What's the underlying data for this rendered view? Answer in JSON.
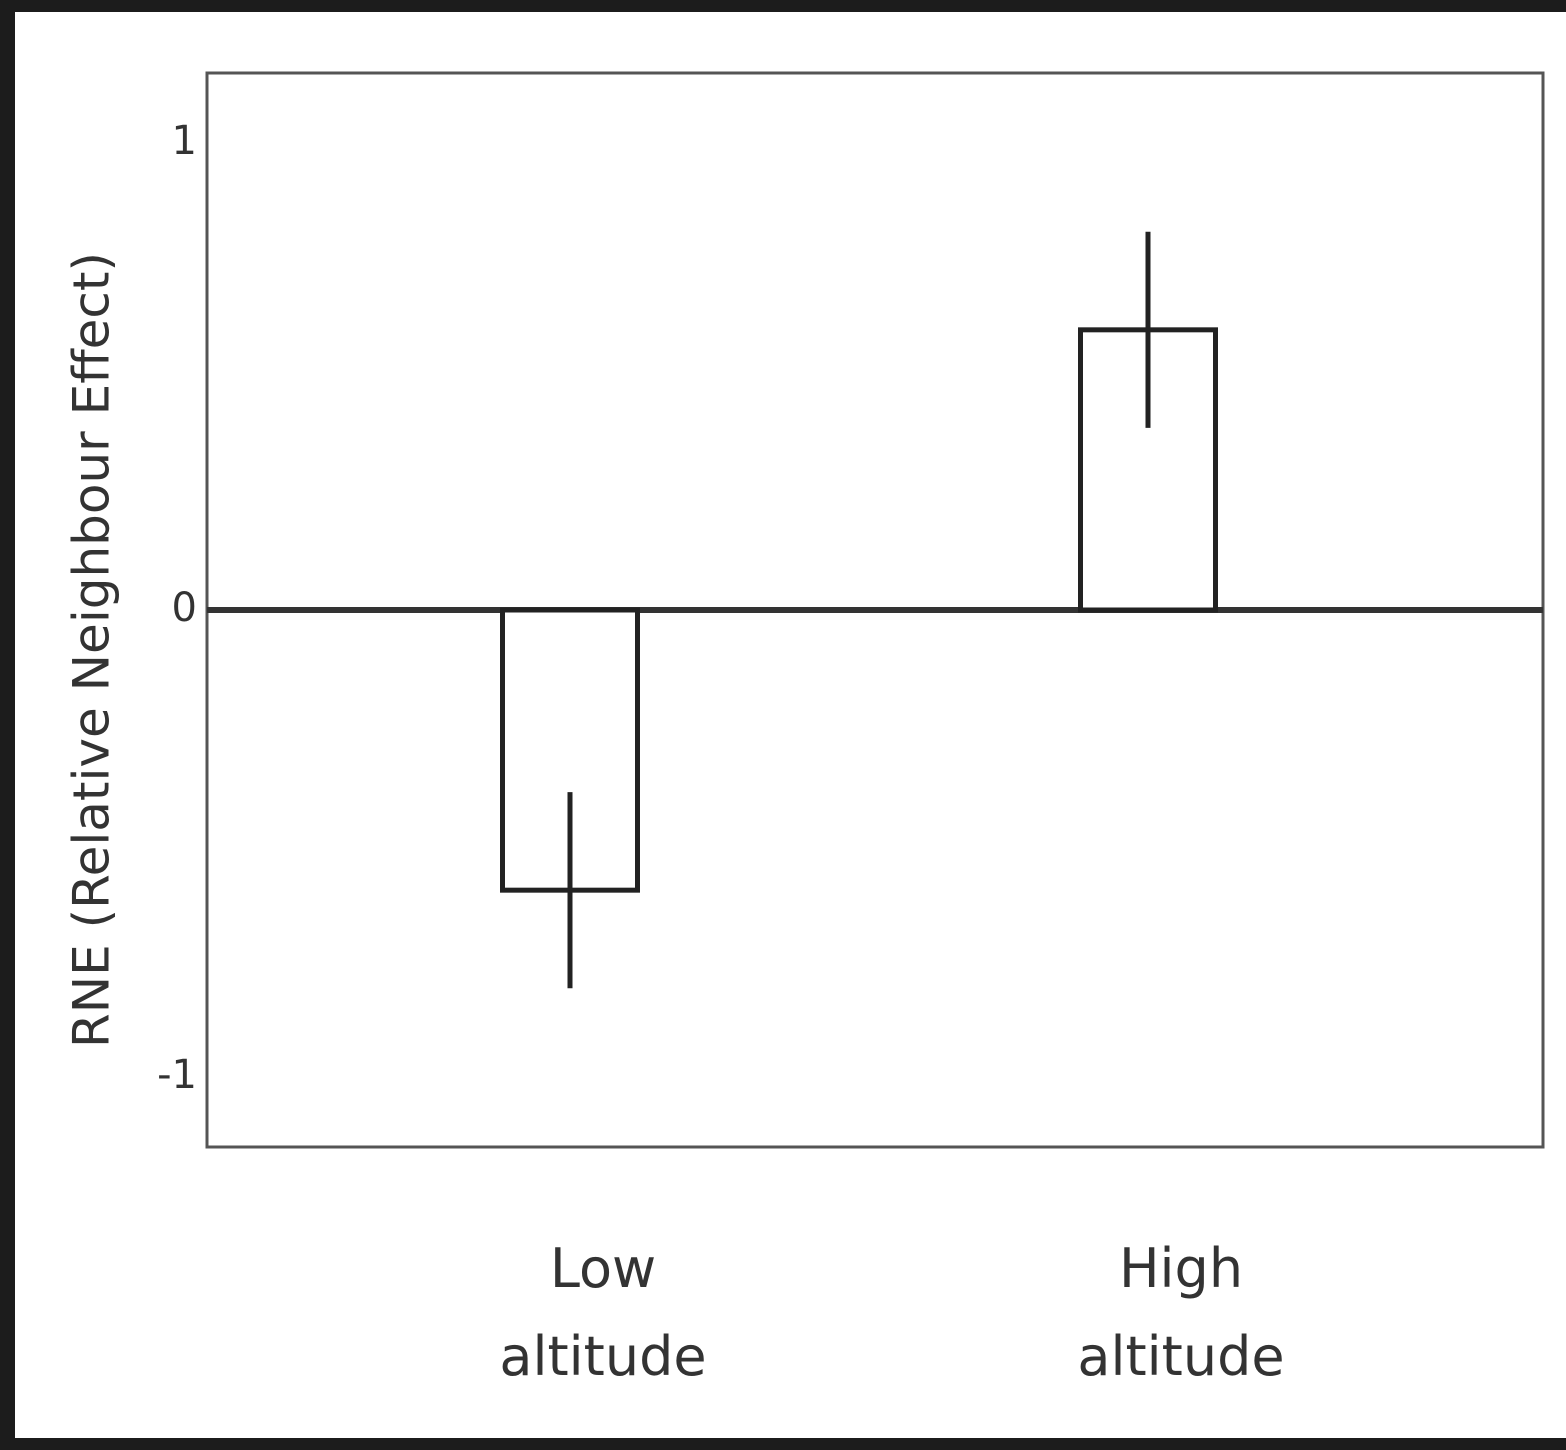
{
  "chart_data": {
    "type": "bar",
    "ylabel": "RNE (Relative Neighbour Effect)",
    "categories": [
      "Low altitude",
      "High altitude"
    ],
    "values": [
      -0.6,
      0.6
    ],
    "errors": [
      0.21,
      0.21
    ],
    "color": "#ffffff",
    "edgecolor": "#222222",
    "ylim": [
      -1.15,
      1.15
    ],
    "yticks": [
      -1,
      0,
      1
    ],
    "grid": false
  }
}
